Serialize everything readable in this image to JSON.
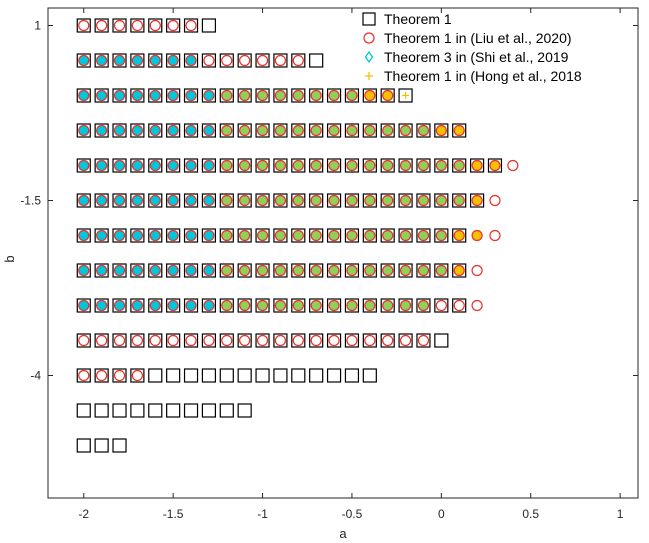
{
  "chart_data": {
    "type": "scatter",
    "xlabel": "a",
    "ylabel": "b",
    "xlim": [
      -2.2,
      1.1
    ],
    "ylim": [
      -5.75,
      1.25
    ],
    "xticks": [
      -2,
      -1.5,
      -1,
      -0.5,
      0,
      0.5,
      1
    ],
    "xtick_labels": [
      "-2",
      "-1.5",
      "-1",
      "-0.5",
      "0",
      "0.5",
      "1"
    ],
    "yticks": [
      1,
      -1.5,
      -4
    ],
    "ytick_labels": [
      "1",
      "-1.5",
      "-4"
    ],
    "x_step": 0.1,
    "grid": false,
    "legend_position": "top-right",
    "colors": {
      "theorem1": "#000000",
      "liu2020": "#e8302a",
      "shi2019": "#00c8dc",
      "hong2018": "#f5c000",
      "green_overlap": "#8ed05a"
    },
    "series": [
      {
        "name": "Theorem 1",
        "marker": "square",
        "color": "#000000"
      },
      {
        "name": "Theorem 1 in (Liu et al., 2020)",
        "marker": "circle",
        "color": "#e8302a"
      },
      {
        "name": "Theorem 3 in (Shi et al., 2019",
        "marker": "diamond",
        "color": "#00c8dc"
      },
      {
        "name": "Theorem 1 in (Hong et al., 2018",
        "marker": "plus",
        "color": "#f5c000"
      }
    ],
    "rows": [
      {
        "b": 1.0,
        "square_max": -1.3,
        "circle_max": -1.4,
        "diamond_max": null,
        "green_max": null,
        "plus_max": null
      },
      {
        "b": 0.5,
        "square_max": -0.7,
        "circle_max": -0.8,
        "diamond_max": -1.4,
        "green_max": null,
        "plus_max": null
      },
      {
        "b": 0.0,
        "square_max": -0.2,
        "circle_max": -0.3,
        "diamond_max": -1.3,
        "green_max": -0.5,
        "plus_max": -0.2
      },
      {
        "b": -0.5,
        "square_max": 0.1,
        "circle_max": 0.1,
        "diamond_max": -1.3,
        "green_max": -0.1,
        "plus_max": 0.1
      },
      {
        "b": -1.0,
        "square_max": 0.3,
        "circle_max": 0.4,
        "diamond_max": -1.3,
        "green_max": 0.1,
        "plus_max": 0.3
      },
      {
        "b": -1.5,
        "square_max": 0.2,
        "circle_max": 0.3,
        "diamond_max": -1.3,
        "green_max": 0.1,
        "plus_max": 0.2
      },
      {
        "b": -2.0,
        "square_max": 0.1,
        "circle_max": 0.3,
        "diamond_max": -1.3,
        "green_max": 0.0,
        "plus_max": 0.2
      },
      {
        "b": -2.5,
        "square_max": 0.1,
        "circle_max": 0.2,
        "diamond_max": -1.3,
        "green_max": 0.0,
        "plus_max": 0.1
      },
      {
        "b": -3.0,
        "square_max": 0.1,
        "circle_max": 0.2,
        "diamond_max": -1.3,
        "green_max": -0.1,
        "plus_max": null
      },
      {
        "b": -3.5,
        "square_max": 0.0,
        "circle_max": -0.1,
        "diamond_max": null,
        "green_max": null,
        "plus_max": null
      },
      {
        "b": -4.0,
        "square_max": -0.4,
        "circle_max": -1.7,
        "diamond_max": null,
        "green_max": null,
        "plus_max": null
      },
      {
        "b": -4.5,
        "square_max": -1.1,
        "circle_max": null,
        "diamond_max": null,
        "green_max": null,
        "plus_max": null
      },
      {
        "b": -5.0,
        "square_max": -1.8,
        "circle_max": null,
        "diamond_max": null,
        "green_max": null,
        "plus_max": null
      }
    ]
  }
}
